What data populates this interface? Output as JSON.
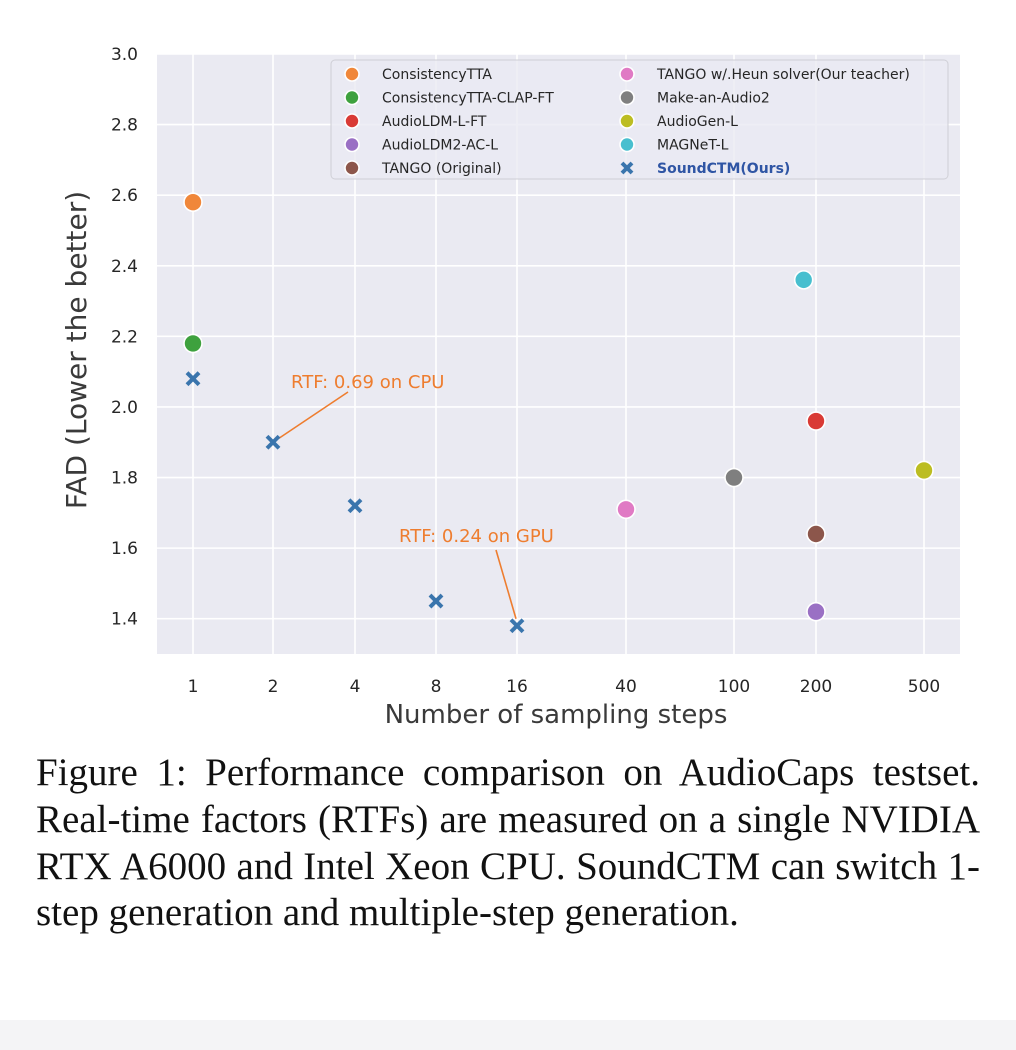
{
  "chart_data": {
    "type": "scatter",
    "title": "",
    "xlabel": "Number of sampling steps",
    "ylabel": "FAD (Lower the better)",
    "x_scale": "categorical",
    "x_categories": [
      "1",
      "2",
      "4",
      "8",
      "16",
      "40",
      "100",
      "200",
      "500"
    ],
    "ylim": [
      1.3,
      3.0
    ],
    "yticks": [
      1.4,
      1.6,
      1.8,
      2.0,
      2.2,
      2.4,
      2.6,
      2.8,
      3.0
    ],
    "grid": true,
    "legend_position": "top-right",
    "series": [
      {
        "name": "ConsistencyTTA",
        "marker": "circle",
        "color": "#f0873a",
        "points": [
          {
            "x": "1",
            "y": 2.58
          }
        ]
      },
      {
        "name": "ConsistencyTTA-CLAP-FT",
        "marker": "circle",
        "color": "#3ea13e",
        "points": [
          {
            "x": "1",
            "y": 2.18
          }
        ]
      },
      {
        "name": "AudioLDM-L-FT",
        "marker": "circle",
        "color": "#d93a35",
        "points": [
          {
            "x": "200",
            "y": 1.96
          }
        ]
      },
      {
        "name": "AudioLDM2-AC-L",
        "marker": "circle",
        "color": "#9a70c4",
        "points": [
          {
            "x": "200",
            "y": 1.42
          }
        ]
      },
      {
        "name": "TANGO (Original)",
        "marker": "circle",
        "color": "#8c564b",
        "points": [
          {
            "x": "200",
            "y": 1.64
          }
        ]
      },
      {
        "name": "TANGO w/.Heun solver(Our teacher)",
        "marker": "circle",
        "color": "#e07ac4",
        "points": [
          {
            "x": "40",
            "y": 1.71
          }
        ]
      },
      {
        "name": "Make-an-Audio2",
        "marker": "circle",
        "color": "#7f7f7f",
        "points": [
          {
            "x": "100",
            "y": 1.8
          }
        ]
      },
      {
        "name": "AudioGen-L",
        "marker": "circle",
        "color": "#bcbd22",
        "points": [
          {
            "x": "500",
            "y": 1.82
          }
        ]
      },
      {
        "name": "MAGNeT-L",
        "marker": "circle",
        "color": "#48bfcf",
        "points": [
          {
            "x": "200",
            "y": 2.36,
            "x_offset": -0.15
          }
        ]
      },
      {
        "name": "SoundCTM(Ours)",
        "marker": "x",
        "color": "#3a75ad",
        "highlight": true,
        "label_color": "#2f55a4",
        "points": [
          {
            "x": "1",
            "y": 2.08
          },
          {
            "x": "2",
            "y": 1.9
          },
          {
            "x": "4",
            "y": 1.72
          },
          {
            "x": "8",
            "y": 1.45
          },
          {
            "x": "16",
            "y": 1.38
          }
        ]
      }
    ],
    "annotations": [
      {
        "text": "RTF: 0.69 on CPU",
        "color": "#ee7d2f",
        "points_to": {
          "x": "2",
          "y": 1.9
        }
      },
      {
        "text": "RTF: 0.24 on GPU",
        "color": "#ee7d2f",
        "points_to": {
          "x": "16",
          "y": 1.38
        }
      }
    ]
  },
  "caption": "Figure 1: Performance comparison on AudioCaps testset. Real-time factors (RTFs) are measured on a single NVIDIA RTX A6000 and Intel Xeon CPU. SoundCTM can switch 1-step generation and multiple-step generation."
}
